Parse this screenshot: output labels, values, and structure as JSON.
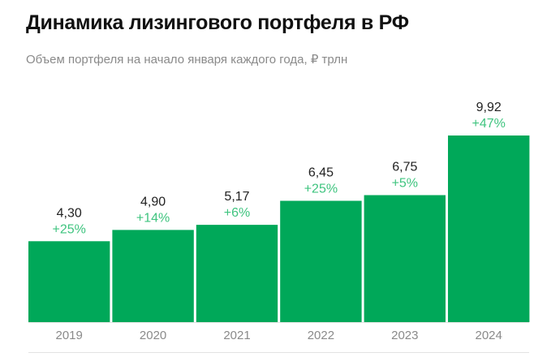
{
  "colors": {
    "bar": "#00a859",
    "growth_text": "#3fc47f",
    "axis": "#e3e3e3"
  },
  "chart_data": {
    "type": "bar",
    "title": "Динамика лизингового портфеля в РФ",
    "subtitle": "Объем портфеля на начало января каждого года, ₽ трлн",
    "categories": [
      "2019",
      "2020",
      "2021",
      "2022",
      "2023",
      "2024"
    ],
    "values": [
      4.3,
      4.9,
      5.17,
      6.45,
      6.75,
      9.92
    ],
    "value_labels": [
      "4,30",
      "4,90",
      "5,17",
      "6,45",
      "6,75",
      "9,92"
    ],
    "growth_labels": [
      "+25%",
      "+14%",
      "+6%",
      "+25%",
      "+5%",
      "+47%"
    ],
    "ylim": [
      0,
      10
    ],
    "grid": false
  }
}
